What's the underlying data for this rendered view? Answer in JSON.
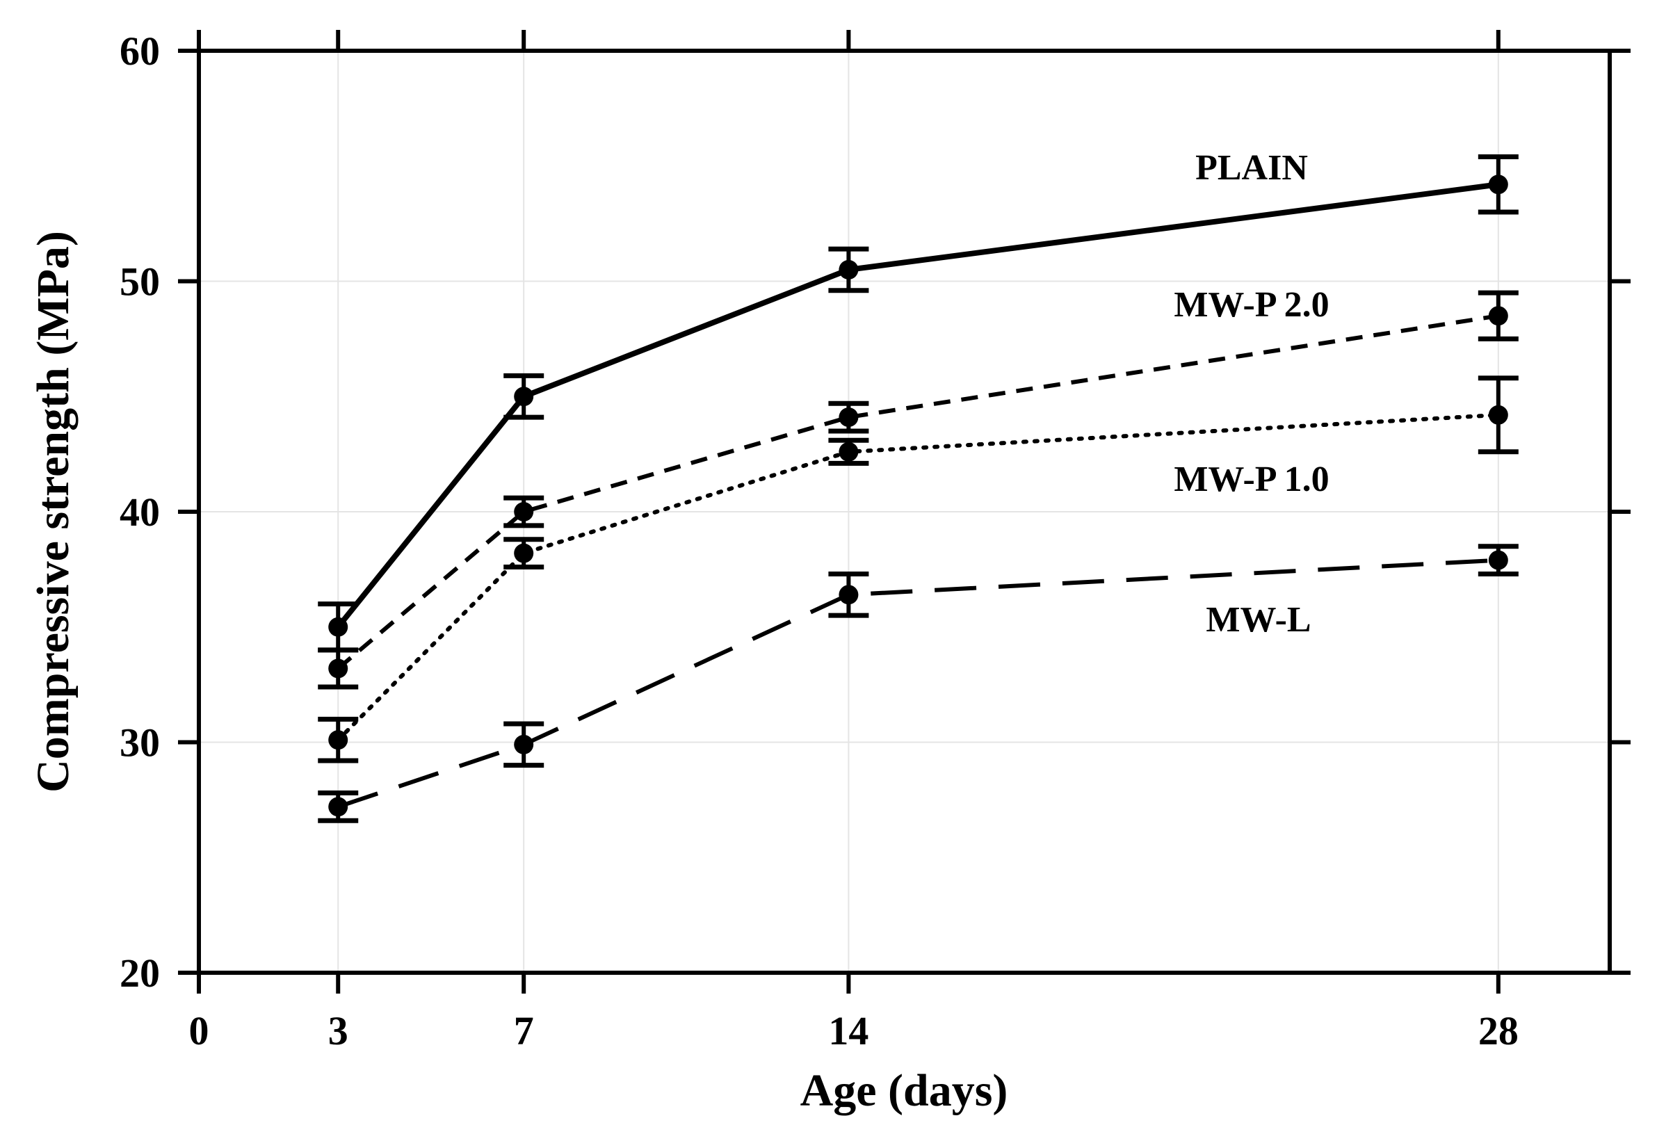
{
  "chart_data": {
    "type": "line",
    "title": "",
    "xlabel": "Age (days)",
    "ylabel": "Compressive strength (MPa)",
    "xlim": [
      0,
      30.4
    ],
    "ylim": [
      20,
      60
    ],
    "xticks": [
      0,
      3,
      7,
      14,
      28
    ],
    "yticks": [
      20,
      30,
      40,
      50,
      60
    ],
    "grid": true,
    "x": [
      3,
      7,
      14,
      28
    ],
    "series": [
      {
        "name": "PLAIN",
        "style": "solid",
        "values": [
          35.0,
          45.0,
          50.5,
          54.2
        ],
        "errors": [
          1.0,
          0.9,
          0.9,
          1.2
        ]
      },
      {
        "name": "MW-P 2.0",
        "style": "dashed",
        "values": [
          33.2,
          40.0,
          44.1,
          48.5
        ],
        "errors": [
          0.8,
          0.6,
          0.6,
          1.0
        ]
      },
      {
        "name": "MW-P 1.0",
        "style": "dotted",
        "values": [
          30.1,
          38.2,
          42.6,
          44.2
        ],
        "errors": [
          0.9,
          0.6,
          0.5,
          1.6
        ]
      },
      {
        "name": "MW-L",
        "style": "long-dash",
        "values": [
          27.2,
          29.9,
          36.4,
          37.9
        ],
        "errors": [
          0.6,
          0.9,
          0.9,
          0.6
        ]
      }
    ]
  }
}
